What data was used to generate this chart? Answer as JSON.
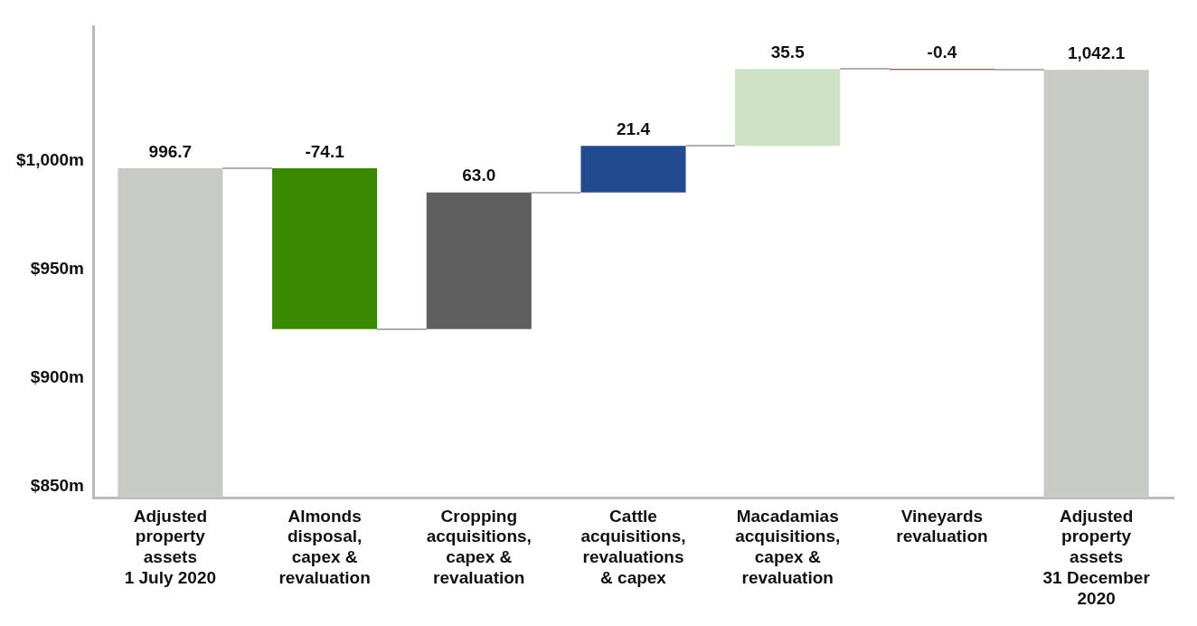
{
  "chart_data": {
    "type": "bar",
    "categories": [
      "Adjusted\nproperty\nassets\n1 July 2020",
      "Almonds\ndisposal,\ncapex &\nrevaluation",
      "Cropping\nacquisitions,\ncapex &\nrevaluation",
      "Cattle\nacquisitions,\nrevaluations\n& capex",
      "Macadamias\nacquisitions,\ncapex &\nrevaluation",
      "Vineyards\nrevaluation",
      "Adjusted\nproperty\nassets\n31 December\n2020"
    ],
    "values": [
      996.7,
      -74.1,
      63.0,
      21.4,
      35.5,
      -0.4,
      1042.1
    ],
    "base": [
      0,
      996.7,
      922.6,
      985.6,
      1007.0,
      1042.5,
      0
    ],
    "colors": [
      "#c8cac5",
      "#3a8a00",
      "#5f5f5f",
      "#214a8f",
      "#cfe2c5",
      "#a50f15",
      "#c8cac5"
    ],
    "value_labels": [
      "996.7",
      "-74.1",
      "63.0",
      "21.4",
      "35.5",
      "-0.4",
      "1,042.1"
    ],
    "ylim": [
      845,
      1062
    ],
    "yticks": [
      {
        "value": 850,
        "label": "$850m"
      },
      {
        "value": 900,
        "label": "$900m"
      },
      {
        "value": 950,
        "label": "$950m"
      },
      {
        "value": 1000,
        "label": "$1,000m"
      }
    ],
    "grid": false,
    "legend": false
  }
}
